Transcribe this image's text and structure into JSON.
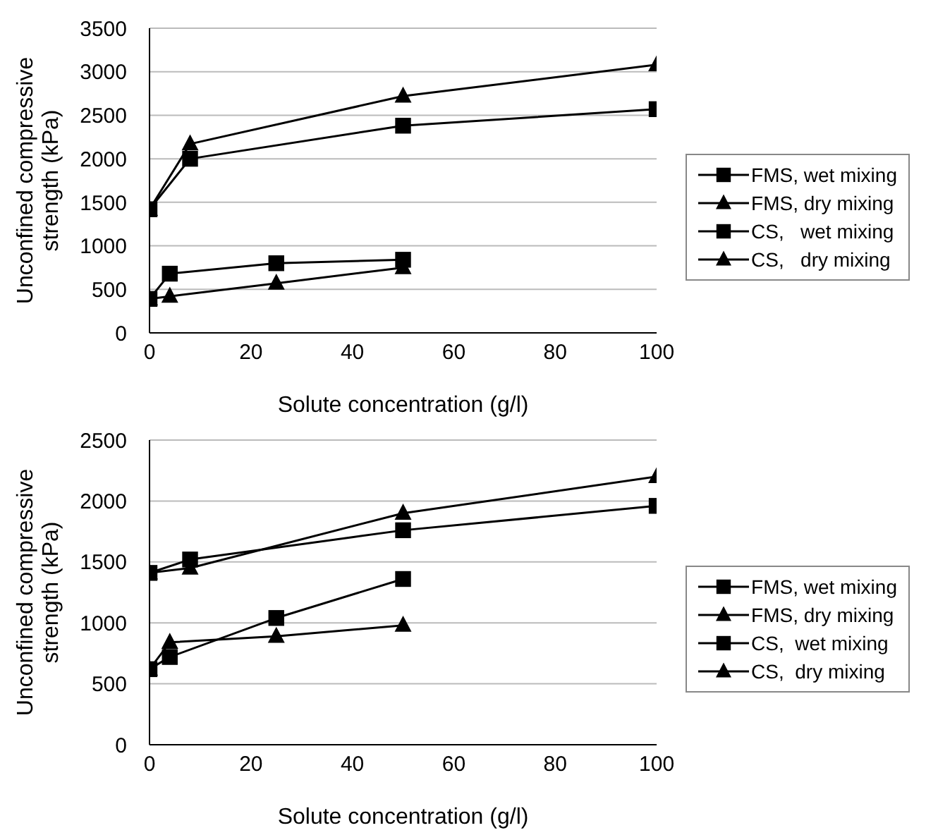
{
  "chart_data": [
    {
      "type": "line",
      "xlabel": "Solute concentration (g/l)",
      "ylabel": "Unconfined compressive strength (kPa)",
      "xlim": [
        0,
        100
      ],
      "xticks": [
        0,
        20,
        40,
        60,
        80,
        100
      ],
      "ylim": [
        0,
        3500
      ],
      "yticks": [
        0,
        500,
        1000,
        1500,
        2000,
        2500,
        3000,
        3500
      ],
      "grid": "y",
      "legend": "right",
      "line_style": "solid",
      "series": [
        {
          "name": "FMS, wet mixing",
          "color": "#000000",
          "marker": "square",
          "x": [
            0,
            4,
            25,
            50
          ],
          "values": [
            390,
            680,
            800,
            840
          ]
        },
        {
          "name": "FMS, dry mixing",
          "color": "#000000",
          "marker": "triangle",
          "x": [
            0,
            4,
            25,
            50
          ],
          "values": [
            390,
            420,
            570,
            750
          ]
        },
        {
          "name": "CS,   wet mixing",
          "color": "#000000",
          "marker": "square",
          "x": [
            0,
            8,
            50,
            100
          ],
          "values": [
            1420,
            2000,
            2380,
            2570
          ]
        },
        {
          "name": "CS,   dry mixing",
          "color": "#000000",
          "marker": "triangle",
          "x": [
            0,
            8,
            50,
            100
          ],
          "values": [
            1420,
            2170,
            2720,
            3080
          ]
        }
      ]
    },
    {
      "type": "line",
      "xlabel": "Solute concentration (g/l)",
      "ylabel": "Unconfined compressive strength (kPa)",
      "xlim": [
        0,
        100
      ],
      "xticks": [
        0,
        20,
        40,
        60,
        80,
        100
      ],
      "ylim": [
        0,
        2500
      ],
      "yticks": [
        0,
        500,
        1000,
        1500,
        2000,
        2500
      ],
      "grid": "y",
      "legend": "right",
      "line_style": "solid",
      "series": [
        {
          "name": "FMS, wet mixing",
          "color": "#000000",
          "marker": "square",
          "x": [
            0,
            4,
            25,
            50
          ],
          "values": [
            620,
            720,
            1040,
            1360
          ]
        },
        {
          "name": "FMS, dry mixing",
          "color": "#000000",
          "marker": "triangle",
          "x": [
            0,
            4,
            25,
            50
          ],
          "values": [
            620,
            840,
            890,
            980
          ]
        },
        {
          "name": "CS,  wet mixing",
          "color": "#000000",
          "marker": "square",
          "x": [
            0,
            8,
            50,
            100
          ],
          "values": [
            1410,
            1520,
            1760,
            1960
          ]
        },
        {
          "name": "CS,  dry mixing",
          "color": "#000000",
          "marker": "triangle",
          "x": [
            0,
            8,
            50,
            100
          ],
          "values": [
            1410,
            1450,
            1900,
            2200
          ]
        }
      ]
    }
  ]
}
